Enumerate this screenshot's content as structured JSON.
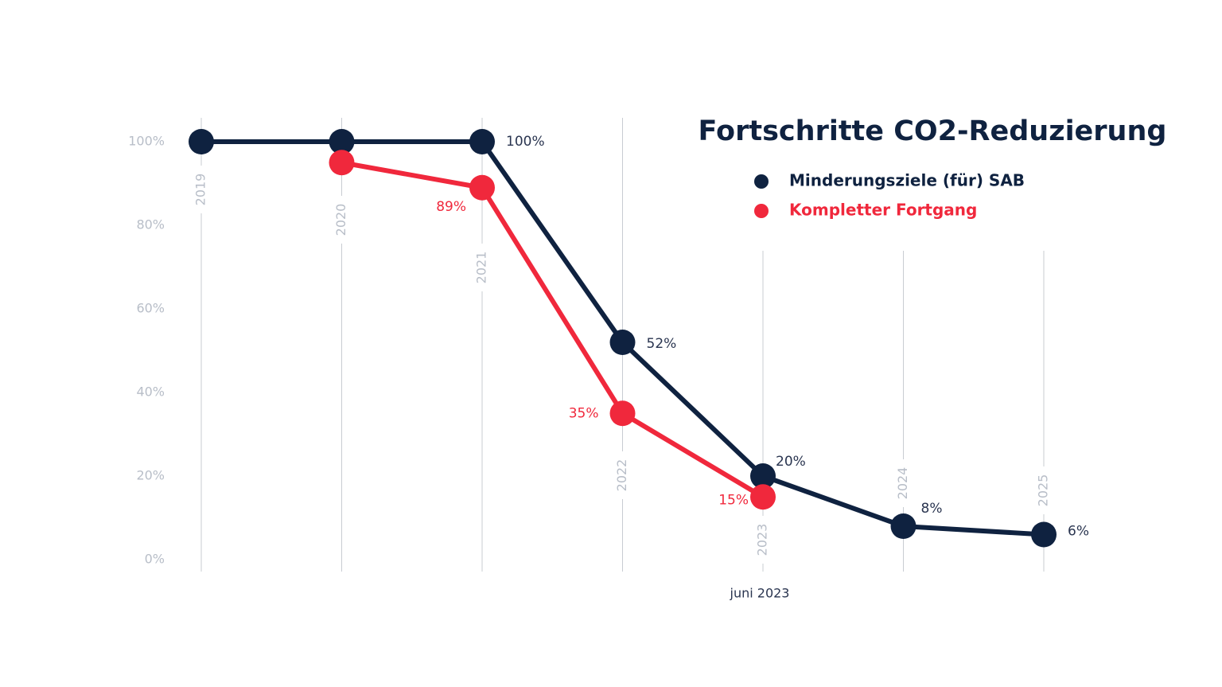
{
  "chart_data": {
    "type": "line",
    "title": "Fortschritte CO2-Reduzierung",
    "categories": [
      "2019",
      "2020",
      "2021",
      "2022",
      "2023",
      "2024",
      "2025"
    ],
    "series": [
      {
        "name": "Minderungsziele (für) SAB",
        "color": "#0f2240",
        "values": [
          100,
          100,
          100,
          52,
          20,
          8,
          6
        ],
        "value_labels": [
          null,
          null,
          "100%",
          "52%",
          "20%",
          "8%",
          "6%"
        ]
      },
      {
        "name": "Kompletter Fortgang",
        "color": "#f0283c",
        "values": [
          null,
          95,
          89,
          35,
          15,
          null,
          null
        ],
        "value_labels": [
          null,
          null,
          "89%",
          "35%",
          "15%",
          null,
          null
        ]
      }
    ],
    "ylim": [
      0,
      100
    ],
    "yticks": [
      {
        "value": 0,
        "label": "0%"
      },
      {
        "value": 20,
        "label": "20%"
      },
      {
        "value": 40,
        "label": "40%"
      },
      {
        "value": 60,
        "label": "60%"
      },
      {
        "value": 80,
        "label": "80%"
      },
      {
        "value": 100,
        "label": "100%"
      }
    ],
    "annotations": [
      {
        "text": "juni 2023",
        "category": "2023"
      }
    ]
  }
}
